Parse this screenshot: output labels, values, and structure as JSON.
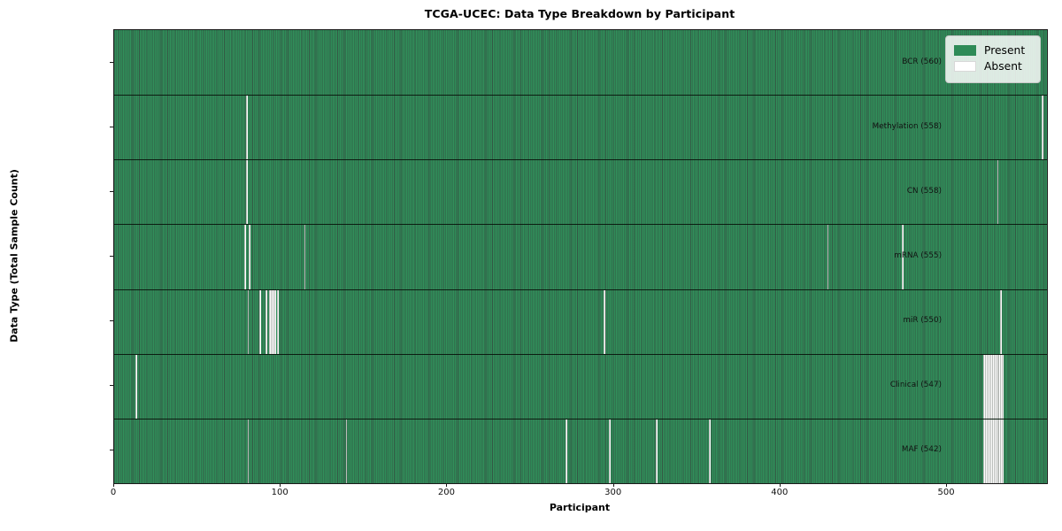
{
  "title": "TCGA-UCEC: Data Type Breakdown by Participant",
  "x_axis_label": "Participant",
  "y_axis_label": "Data Type (Total Sample Count)",
  "legend": {
    "present_label": "Present",
    "absent_label": "Absent"
  },
  "colors": {
    "present": "#2e8b57",
    "absent": "#ffffff",
    "cell_edge": "#1c5636",
    "axis": "#1a1a1a"
  },
  "chart_data": {
    "type": "heatmap",
    "title": "TCGA-UCEC: Data Type Breakdown by Participant",
    "xlabel": "Participant",
    "ylabel": "Data Type (Total Sample Count)",
    "legend_entries": [
      "Present",
      "Absent"
    ],
    "legend_position": "upper right",
    "n_participants": 560,
    "x_range": [
      0,
      560
    ],
    "x_ticks": [
      0,
      100,
      200,
      300,
      400,
      500
    ],
    "value_encoding": {
      "present": "seagreen cell",
      "absent": "white cell"
    },
    "rows": [
      {
        "name": "BCR",
        "label": "BCR (560)",
        "present_count": 560,
        "absent_participants": []
      },
      {
        "name": "Methylation",
        "label": "Methylation (558)",
        "present_count": 558,
        "absent_participants": [
          79,
          557
        ]
      },
      {
        "name": "CN",
        "label": "CN (558)",
        "present_count": 558,
        "absent_participants": [
          79,
          530
        ]
      },
      {
        "name": "mRNA",
        "label": "mRNA (555)",
        "present_count": 555,
        "absent_participants": [
          78,
          81,
          114,
          428,
          473
        ]
      },
      {
        "name": "miR",
        "label": "miR (550)",
        "present_count": 550,
        "absent_participants": [
          80,
          87,
          91,
          93,
          94,
          95,
          96,
          98,
          294,
          532
        ]
      },
      {
        "name": "Clinical",
        "label": "Clinical (547)",
        "present_count": 547,
        "absent_participants": [
          13,
          522,
          523,
          524,
          525,
          526,
          527,
          528,
          529,
          530,
          531,
          532,
          533
        ]
      },
      {
        "name": "MAF",
        "label": "MAF (542)",
        "present_count": 542,
        "absent_participants": [
          80,
          139,
          271,
          297,
          325,
          357,
          522,
          523,
          524,
          525,
          526,
          527,
          528,
          529,
          530,
          531,
          532,
          533
        ]
      }
    ]
  }
}
